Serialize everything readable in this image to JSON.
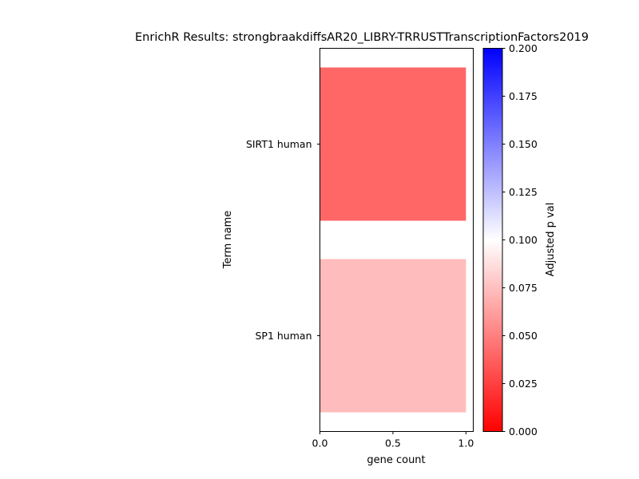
{
  "chart_data": {
    "type": "bar",
    "orientation": "horizontal",
    "title": "EnrichR Results: strongbraakdiffsAR20_LIBRY-TRRUSTTranscriptionFactors2019",
    "xlabel": "gene count",
    "ylabel": "Term name",
    "categories": [
      "SIRT1 human",
      "SP1 human"
    ],
    "values": [
      1,
      1
    ],
    "adjusted_p_values": [
      0.02,
      0.065
    ],
    "xlim": [
      0,
      1.05
    ],
    "xticks": [
      "0.0",
      "0.5",
      "1.0"
    ],
    "grid": false,
    "colorbar": {
      "label": "Adjusted p val",
      "range": [
        0,
        0.2
      ],
      "ticks": [
        "0.000",
        "0.025",
        "0.050",
        "0.075",
        "0.100",
        "0.125",
        "0.150",
        "0.175",
        "0.200"
      ],
      "colors": [
        "#ff0000",
        "#ffffff",
        "#0000ff"
      ]
    }
  }
}
